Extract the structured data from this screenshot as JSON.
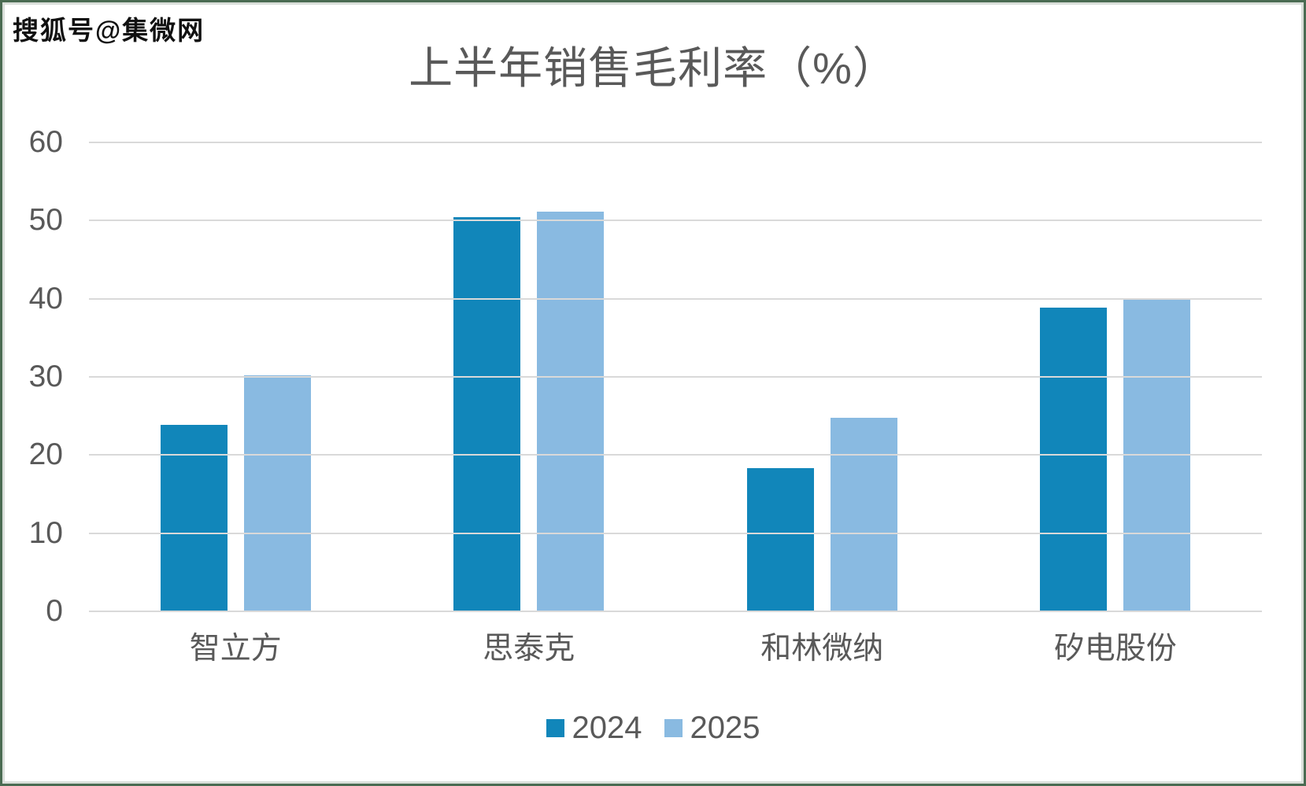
{
  "watermark": {
    "text": "搜狐号@集微网"
  },
  "chart_data": {
    "type": "bar",
    "title": "上半年销售毛利率（%）",
    "categories": [
      "智立方",
      "思泰克",
      "和林微纳",
      "矽电股份"
    ],
    "series": [
      {
        "name": "2024",
        "color": "#1186BA",
        "values": [
          23.9,
          50.4,
          18.3,
          38.9
        ]
      },
      {
        "name": "2025",
        "color": "#89BAE1",
        "values": [
          30.2,
          51.1,
          24.8,
          40.0
        ]
      }
    ],
    "xlabel": "",
    "ylabel": "",
    "ylim": [
      0,
      60
    ],
    "ytick_step": 10,
    "yticks": [
      0,
      10,
      20,
      30,
      40,
      50,
      60
    ],
    "grid": true,
    "gridline_color": "#D9D9D9",
    "text_color": "#595959",
    "legend_position": "bottom"
  }
}
